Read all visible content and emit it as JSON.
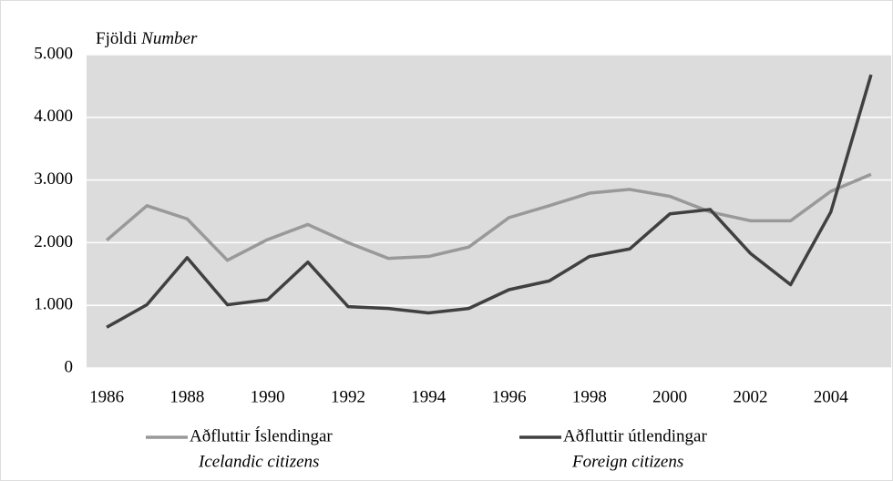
{
  "chart_data": {
    "type": "line",
    "ylabel": "Fjöldi",
    "ylabel_en": "Number",
    "x": [
      1986,
      1987,
      1988,
      1989,
      1990,
      1991,
      1992,
      1993,
      1994,
      1995,
      1996,
      1997,
      1998,
      1999,
      2000,
      2001,
      2002,
      2003,
      2004,
      2005
    ],
    "series": [
      {
        "name": "Aðfluttir Íslendingar",
        "subtitle": "Icelandic citizens",
        "color": "#999999",
        "values": [
          2040,
          2590,
          2380,
          1720,
          2050,
          2290,
          2000,
          1750,
          1780,
          1930,
          2400,
          2590,
          2790,
          2850,
          2740,
          2490,
          2350,
          2350,
          2820,
          3090
        ]
      },
      {
        "name": "Aðfluttir útlendingar",
        "subtitle": "Foreign citizens",
        "color": "#404040",
        "values": [
          650,
          1010,
          1760,
          1010,
          1090,
          1690,
          980,
          950,
          880,
          950,
          1250,
          1390,
          1780,
          1900,
          2460,
          2530,
          1830,
          1330,
          2490,
          4680
        ]
      }
    ],
    "xlim": [
      1985.5,
      2005.5
    ],
    "xticks": [
      1986,
      1988,
      1990,
      1992,
      1994,
      1996,
      1998,
      2000,
      2002,
      2004
    ],
    "ylim": [
      0,
      5000
    ],
    "yticks": [
      0,
      {
        "value": 1000,
        "label": "1.000"
      },
      {
        "value": 2000,
        "label": "2.000"
      },
      {
        "value": 3000,
        "label": "3.000"
      },
      {
        "value": 4000,
        "label": "4.000"
      },
      {
        "value": 5000,
        "label": "5.000"
      }
    ],
    "grid": true,
    "plot_background": "#dcdcdc"
  }
}
